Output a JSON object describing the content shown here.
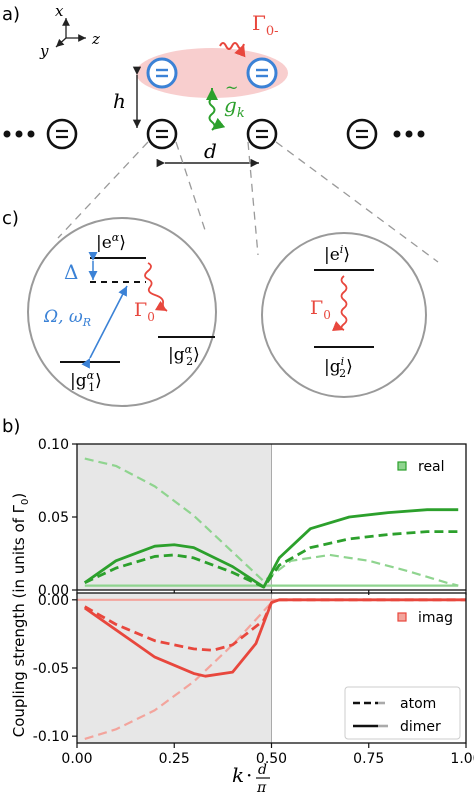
{
  "panel_labels": {
    "a": "a)",
    "b": "b)",
    "c": "c)"
  },
  "schematic": {
    "axis_x": "x",
    "axis_y": "y",
    "axis_z": "z",
    "gamma0minus": "Γ",
    "gamma0minus_sub": "0-",
    "gk": "g",
    "gk_sub": "k",
    "height": "h",
    "distance": "d"
  },
  "level_left": {
    "excited": "|e",
    "excited_sup": "α",
    "detuning": "Δ",
    "drive": "Ω, ω",
    "drive_sub": "R",
    "decay": "Γ",
    "decay_sub": "0",
    "g1": "|g",
    "g1_sup": "α",
    "g1_sub": "1",
    "g2": "|g",
    "g2_sup": "α",
    "g2_sub": "2"
  },
  "level_right": {
    "excited": "|e",
    "excited_sup": "i",
    "decay": "Γ",
    "decay_sub": "0",
    "g2": "|g",
    "g2_sup": "i",
    "g2_sub": "2"
  },
  "colors": {
    "green": "#2ca02c",
    "red": "#e8473d",
    "blue": "#3b82d6",
    "shade": "#e7e7e7",
    "pink": "#f7c6c6"
  },
  "chart_data": [
    {
      "type": "line",
      "panel": "top",
      "legend_label": "real",
      "ylim": [
        0.0,
        0.1
      ],
      "yticks": [
        "0.10",
        "0.05",
        "0.00"
      ],
      "ytick_values": [
        0.1,
        0.05,
        0.0
      ],
      "xlim": [
        0,
        1
      ],
      "shaded_region": [
        0,
        0.5
      ],
      "series": [
        {
          "style": "atom",
          "opacity": "faded",
          "x": [
            0.02,
            0.1,
            0.2,
            0.3,
            0.4,
            0.48,
            0.55,
            0.65,
            0.75,
            0.85,
            0.95,
            0.98
          ],
          "y": [
            0.09,
            0.085,
            0.071,
            0.051,
            0.026,
            0.006,
            0.02,
            0.024,
            0.02,
            0.013,
            0.005,
            0.003
          ]
        },
        {
          "style": "dimer",
          "opacity": "faded",
          "x": [
            0.02,
            0.98
          ],
          "y": [
            0.003,
            0.003
          ]
        },
        {
          "style": "atom",
          "opacity": "solid",
          "x": [
            0.02,
            0.1,
            0.2,
            0.25,
            0.3,
            0.4,
            0.48,
            0.52,
            0.6,
            0.7,
            0.8,
            0.9,
            0.98
          ],
          "y": [
            0.005,
            0.015,
            0.023,
            0.024,
            0.022,
            0.012,
            0.002,
            0.017,
            0.029,
            0.035,
            0.038,
            0.04,
            0.04
          ]
        },
        {
          "style": "dimer",
          "opacity": "solid",
          "x": [
            0.02,
            0.1,
            0.2,
            0.25,
            0.3,
            0.4,
            0.48,
            0.52,
            0.6,
            0.7,
            0.8,
            0.9,
            0.98
          ],
          "y": [
            0.005,
            0.02,
            0.03,
            0.031,
            0.029,
            0.016,
            0.002,
            0.022,
            0.042,
            0.05,
            0.053,
            0.055,
            0.055
          ]
        }
      ]
    },
    {
      "type": "line",
      "panel": "bottom",
      "legend_label": "imag",
      "ylim": [
        -0.105,
        0.005
      ],
      "yticks": [
        "0.00",
        "-0.05",
        "-0.10"
      ],
      "ytick_values": [
        0.0,
        -0.05,
        -0.1
      ],
      "xlim": [
        0,
        1
      ],
      "xticks": [
        "0.00",
        "0.25",
        "0.50",
        "0.75",
        "1.00"
      ],
      "xtick_values": [
        0.0,
        0.25,
        0.5,
        0.75,
        1.0
      ],
      "shaded_region": [
        0,
        0.5
      ],
      "series": [
        {
          "style": "dimer",
          "opacity": "faded",
          "x": [
            0.0,
            1.0
          ],
          "y": [
            0.0,
            0.0
          ]
        },
        {
          "style": "atom",
          "opacity": "faded",
          "x": [
            0.02,
            0.1,
            0.2,
            0.3,
            0.4,
            0.5,
            0.52
          ],
          "y": [
            -0.102,
            -0.095,
            -0.081,
            -0.06,
            -0.033,
            -0.002,
            0.0
          ]
        },
        {
          "style": "atom",
          "opacity": "solid",
          "x": [
            0.02,
            0.1,
            0.2,
            0.3,
            0.35,
            0.4,
            0.48,
            0.5,
            0.52,
            1.0
          ],
          "y": [
            -0.005,
            -0.018,
            -0.03,
            -0.036,
            -0.037,
            -0.033,
            -0.015,
            -0.002,
            0.0,
            0.0
          ]
        },
        {
          "style": "dimer",
          "opacity": "solid",
          "x": [
            0.02,
            0.1,
            0.2,
            0.3,
            0.33,
            0.4,
            0.46,
            0.5,
            0.52,
            1.0
          ],
          "y": [
            -0.006,
            -0.022,
            -0.042,
            -0.054,
            -0.056,
            -0.053,
            -0.032,
            -0.002,
            0.0,
            0.0
          ]
        }
      ],
      "legend": [
        {
          "label": "atom",
          "style": "dashed"
        },
        {
          "label": "dimer",
          "style": "solid"
        }
      ]
    }
  ],
  "axes": {
    "ylabel": "Coupling strength (in units of Γ",
    "ylabel_sub": "0",
    "ylabel_close": ")",
    "xlabel_k": "k",
    "xlabel_dot": "·",
    "xlabel_num": "d",
    "xlabel_den": "π"
  }
}
